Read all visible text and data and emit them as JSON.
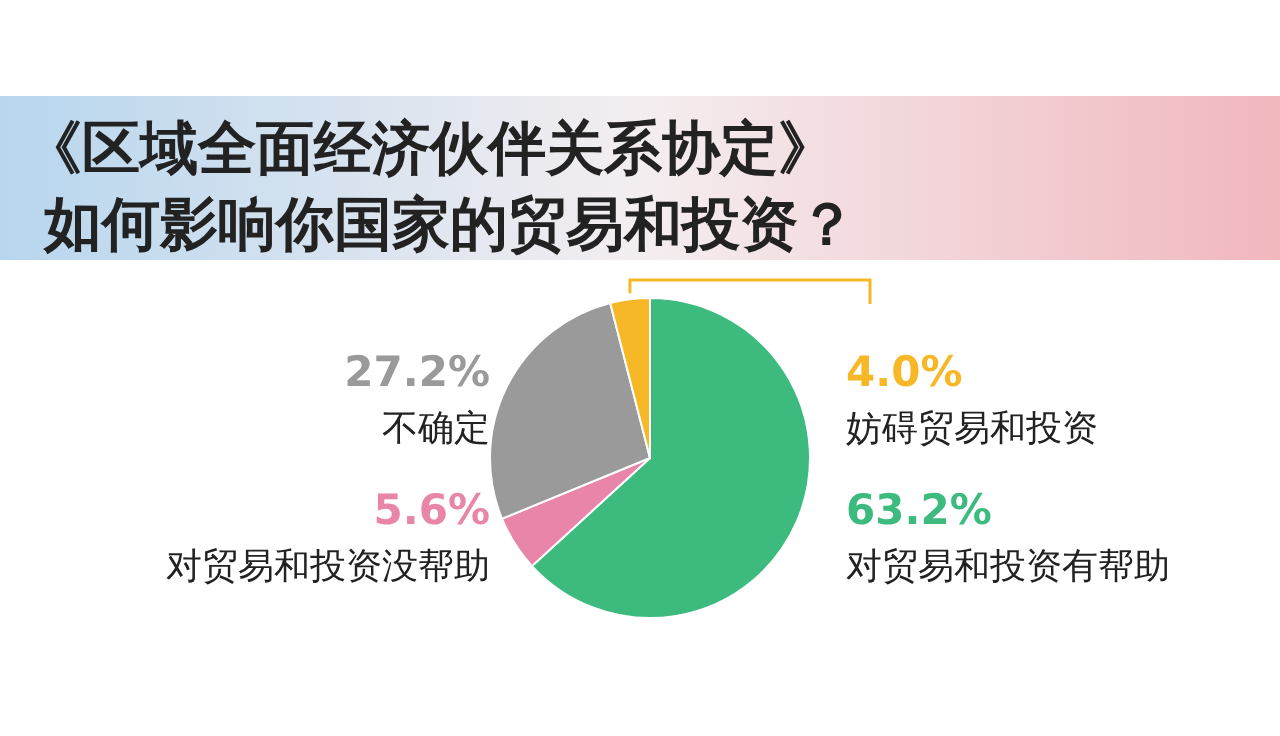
{
  "chart_data": {
    "type": "pie",
    "title": "《区域全面经济伙伴关系协定》",
    "subtitle": "如何影响你国家的贸易和投资？",
    "categories": [
      "对贸易和投资有帮助",
      "对贸易和投资没帮助",
      "不确定",
      "妨碍贸易和投资"
    ],
    "values": [
      63.2,
      5.6,
      27.2,
      4.0
    ],
    "value_labels": [
      "63.2%",
      "5.6%",
      "27.2%",
      "4.0%"
    ],
    "colors": [
      "#3dbb7f",
      "#e985a8",
      "#9a9a9a",
      "#f6b826"
    ]
  }
}
